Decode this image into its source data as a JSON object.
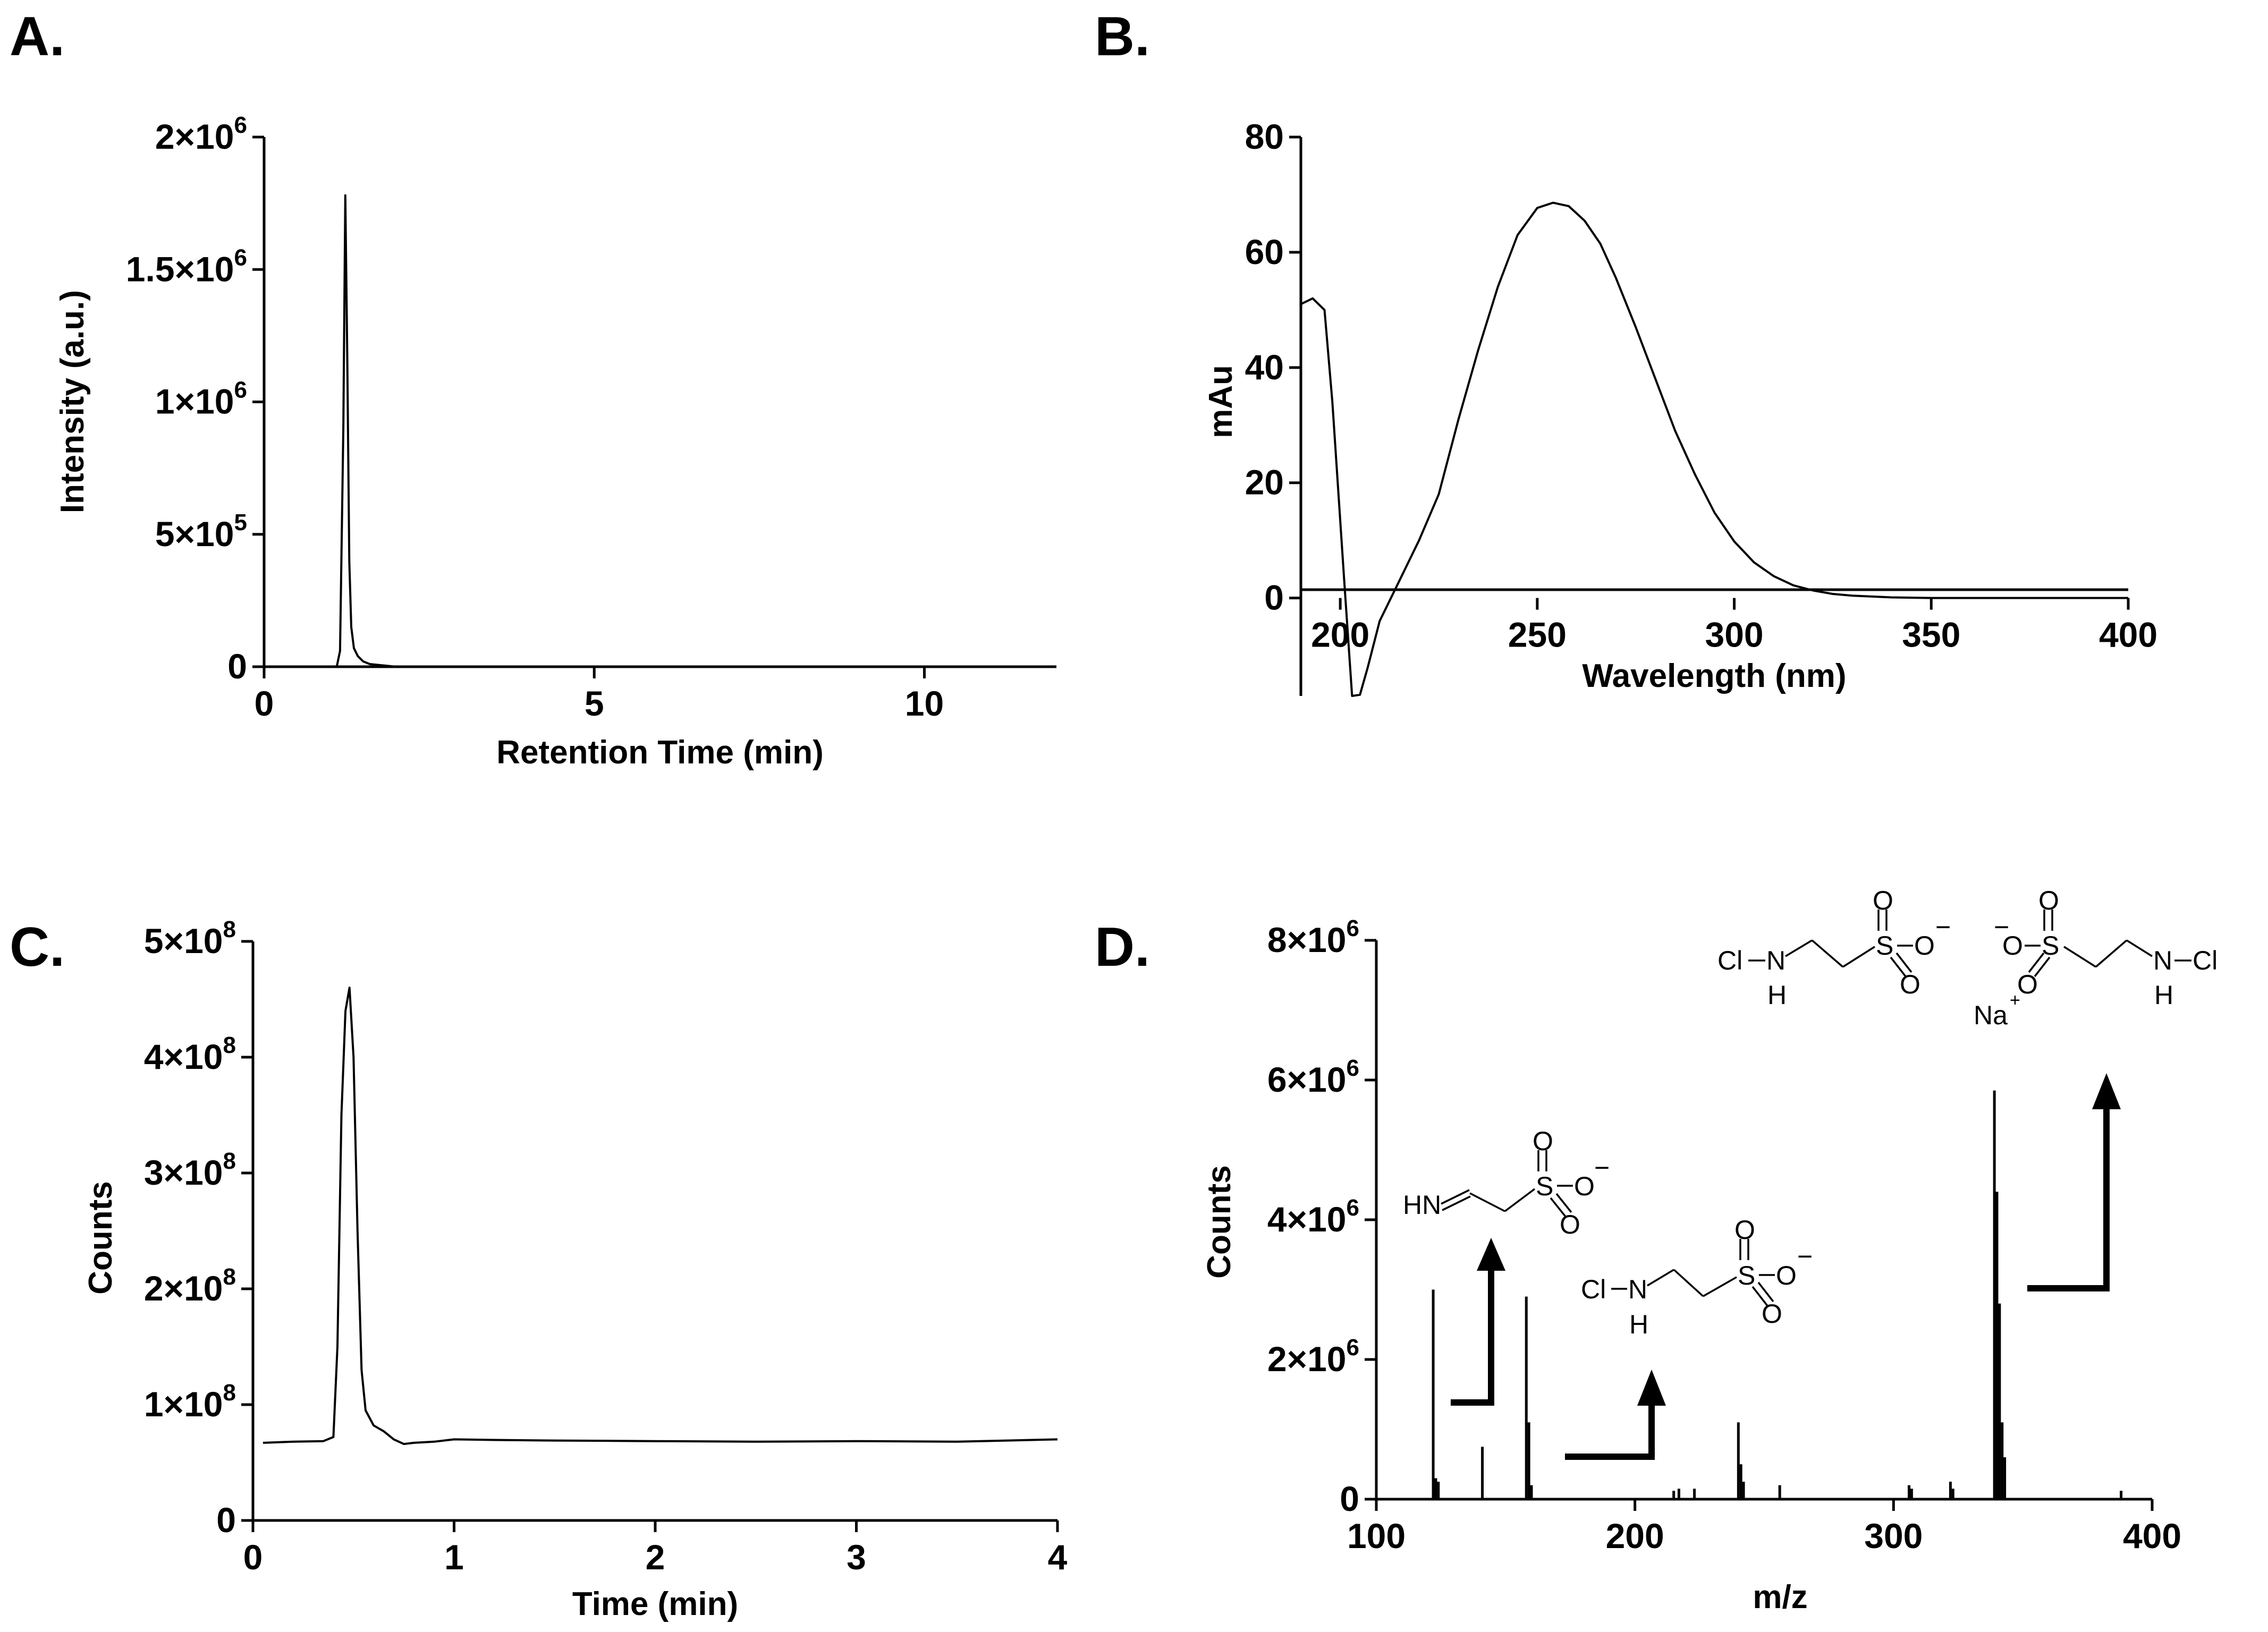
{
  "figure": {
    "panels": [
      "A.",
      "B.",
      "C.",
      "D."
    ]
  },
  "chart_data": [
    {
      "id": "A",
      "type": "line",
      "xlabel": "Retention Time  (min)",
      "ylabel": "Intensity (a.u.)",
      "xlim": [
        0,
        12
      ],
      "ylim": [
        0,
        2000000
      ],
      "xticks": [
        0,
        5,
        10
      ],
      "yticks": [
        {
          "value": 0,
          "mant": "0",
          "exp": ""
        },
        {
          "value": 500000,
          "mant": "5×10",
          "exp": "5"
        },
        {
          "value": 1000000,
          "mant": "1×10",
          "exp": "6"
        },
        {
          "value": 1500000,
          "mant": "1.5×10",
          "exp": "6"
        },
        {
          "value": 2000000,
          "mant": "2×10",
          "exp": "6"
        }
      ],
      "series": [
        {
          "name": "chromatogram",
          "x": [
            0,
            1.1,
            1.15,
            1.2,
            1.23,
            1.26,
            1.29,
            1.32,
            1.36,
            1.42,
            1.5,
            1.6,
            1.8,
            2.0,
            12
          ],
          "y": [
            0,
            0,
            60000,
            900000,
            1780000,
            1150000,
            400000,
            150000,
            70000,
            40000,
            20000,
            10000,
            5000,
            0,
            0
          ]
        }
      ]
    },
    {
      "id": "B",
      "type": "line",
      "xlabel": "Wavelength (nm)",
      "ylabel": "mAu",
      "xlim": [
        190,
        400
      ],
      "ylim": [
        -17,
        80
      ],
      "xticks": [
        200,
        250,
        300,
        350,
        400
      ],
      "yticks": [
        0,
        20,
        40,
        60,
        80
      ],
      "series": [
        {
          "name": "UV spectrum",
          "x": [
            190,
            193,
            196,
            198,
            201,
            203,
            205,
            207,
            210,
            215,
            220,
            225,
            230,
            235,
            240,
            245,
            250,
            254,
            258,
            262,
            266,
            270,
            275,
            280,
            285,
            290,
            295,
            300,
            305,
            310,
            315,
            320,
            325,
            330,
            340,
            350,
            360,
            370,
            380,
            390,
            400
          ],
          "y": [
            51,
            52,
            50,
            34,
            3,
            -17,
            -16.8,
            -12,
            -4,
            3,
            10,
            18,
            31,
            43,
            54,
            63,
            67.7,
            68.6,
            68,
            65.5,
            61.5,
            55.5,
            47,
            38,
            29,
            21.5,
            14.8,
            9.8,
            6.2,
            3.8,
            2.2,
            1.3,
            0.7,
            0.4,
            0.1,
            0,
            0,
            0,
            0,
            0,
            0
          ]
        }
      ]
    },
    {
      "id": "C",
      "type": "line",
      "xlabel": "Time (min)",
      "ylabel": "Counts",
      "xlim": [
        0,
        4
      ],
      "ylim": [
        0,
        500000000
      ],
      "xticks": [
        0,
        1,
        2,
        3,
        4
      ],
      "yticks": [
        {
          "value": 0,
          "mant": "0",
          "exp": ""
        },
        {
          "value": 100000000,
          "mant": "1×10",
          "exp": "8"
        },
        {
          "value": 200000000,
          "mant": "2×10",
          "exp": "8"
        },
        {
          "value": 300000000,
          "mant": "3×10",
          "exp": "8"
        },
        {
          "value": 400000000,
          "mant": "4×10",
          "exp": "8"
        },
        {
          "value": 500000000,
          "mant": "5×10",
          "exp": "8"
        }
      ],
      "series": [
        {
          "name": "TIC",
          "x": [
            0.05,
            0.2,
            0.35,
            0.4,
            0.42,
            0.44,
            0.46,
            0.48,
            0.5,
            0.52,
            0.54,
            0.56,
            0.6,
            0.65,
            0.7,
            0.75,
            0.8,
            0.9,
            1.0,
            1.2,
            1.5,
            2.0,
            2.5,
            3.0,
            3.5,
            4.0
          ],
          "y": [
            67000000,
            68000000,
            68500000,
            72000000,
            150000000,
            350000000,
            440000000,
            460000000,
            400000000,
            250000000,
            130000000,
            95000000,
            82000000,
            77000000,
            70000000,
            66000000,
            67000000,
            68000000,
            70000000,
            69500000,
            69000000,
            68500000,
            68000000,
            68500000,
            68000000,
            70000000
          ]
        }
      ]
    },
    {
      "id": "D",
      "type": "bar",
      "xlabel": "m/z",
      "ylabel": "Counts",
      "xlim": [
        100,
        400
      ],
      "ylim": [
        0,
        8000000
      ],
      "xticks": [
        100,
        200,
        300,
        400
      ],
      "yticks": [
        {
          "value": 0,
          "mant": "0",
          "exp": ""
        },
        {
          "value": 2000000,
          "mant": "2×10",
          "exp": "6"
        },
        {
          "value": 4000000,
          "mant": "4×10",
          "exp": "6"
        },
        {
          "value": 6000000,
          "mant": "6×10",
          "exp": "6"
        },
        {
          "value": 8000000,
          "mant": "8×10",
          "exp": "6"
        }
      ],
      "series": [
        {
          "name": "mass spectrum",
          "x": [
            122,
            123,
            124,
            141,
            158,
            159,
            160,
            215,
            217,
            223,
            240,
            241,
            242,
            256,
            306,
            307,
            322,
            323,
            339,
            340,
            341,
            342,
            343,
            388
          ],
          "y": [
            3000000,
            300000,
            250000,
            750000,
            2900000,
            1100000,
            200000,
            120000,
            150000,
            150000,
            1100000,
            500000,
            250000,
            200000,
            200000,
            150000,
            250000,
            150000,
            5850000,
            4400000,
            2800000,
            1100000,
            600000,
            120000
          ]
        }
      ],
      "annotations": {
        "imine": {
          "hn": "HN",
          "s": "S",
          "o_top": "O",
          "o_right": "O",
          "o_bottom": "O",
          "minus": "−"
        },
        "chloramine": {
          "cl": "Cl",
          "n": "N",
          "h": "H",
          "s": "S",
          "o_top": "O",
          "o_right": "O",
          "o_bottom": "O",
          "minus": "−"
        },
        "sodium_adduct": {
          "cl_left": "Cl",
          "n_left": "N",
          "h_left": "H",
          "s_left": "S",
          "o_l_top": "O",
          "o_l_right": "O",
          "o_l_bottom": "O",
          "minus_left": "−",
          "na": "Na",
          "plus": "+",
          "minus_right": "−",
          "o_r_left": "O",
          "s_right": "S",
          "o_r_top": "O",
          "o_r_bottom": "O",
          "n_right": "N",
          "h_right": "H",
          "cl_right": "Cl"
        }
      }
    }
  ]
}
